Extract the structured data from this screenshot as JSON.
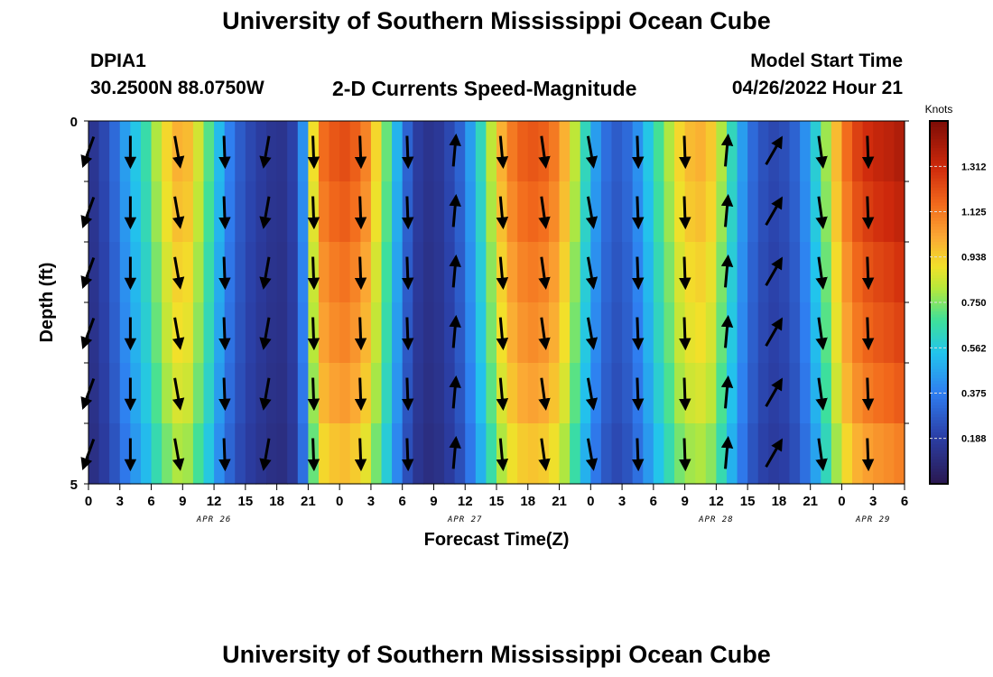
{
  "header": {
    "title": "University of Southern Mississippi Ocean Cube",
    "station_id": "DPIA1",
    "station_coords": "30.2500N  88.0750W",
    "chart_title": "2-D Currents Speed-Magnitude",
    "model_start_label": "Model Start Time",
    "model_start_value": "04/26/2022 Hour 21"
  },
  "footer": {
    "title": "University of Southern Mississippi Ocean Cube"
  },
  "chart_data": {
    "type": "heatmap",
    "title": "2-D Currents Speed-Magnitude",
    "xlabel": "Forecast Time(Z)",
    "ylabel": "Depth (ft)",
    "x_ticks": [
      "0",
      "3",
      "6",
      "9",
      "12",
      "15",
      "18",
      "21",
      "0",
      "3",
      "6",
      "9",
      "12",
      "15",
      "18",
      "21",
      "0",
      "3",
      "6",
      "9",
      "12",
      "15",
      "18",
      "21",
      "0",
      "3",
      "6"
    ],
    "date_labels": [
      {
        "label": "APR 26",
        "tick_index": 4
      },
      {
        "label": "APR 27",
        "tick_index": 12
      },
      {
        "label": "APR 28",
        "tick_index": 20
      },
      {
        "label": "APR 29",
        "tick_index": 25
      }
    ],
    "y_ticks": [
      "0",
      "5"
    ],
    "ylim": [
      0,
      5
    ],
    "hours_range": [
      0,
      78
    ],
    "depth_levels": [
      0,
      1,
      2,
      3,
      4,
      5
    ],
    "colorbar": {
      "unit": "Knots",
      "min": 0,
      "max": 1.5,
      "tick_values": [
        0.188,
        0.375,
        0.562,
        0.75,
        0.938,
        1.125,
        1.312
      ],
      "tick_labels": [
        "0.188",
        "0.375",
        "0.562",
        "0.750",
        "0.938",
        "1.125",
        "1.312"
      ]
    },
    "speed_knots_by_hour": [
      0.15,
      0.22,
      0.32,
      0.45,
      0.55,
      0.65,
      0.8,
      0.92,
      1.0,
      0.98,
      0.85,
      0.7,
      0.52,
      0.38,
      0.28,
      0.22,
      0.18,
      0.15,
      0.14,
      0.2,
      0.42,
      0.9,
      1.15,
      1.2,
      1.22,
      1.18,
      1.1,
      0.92,
      0.72,
      0.5,
      0.3,
      0.18,
      0.14,
      0.16,
      0.22,
      0.3,
      0.45,
      0.62,
      0.82,
      1.0,
      1.12,
      1.18,
      1.2,
      1.18,
      1.12,
      1.0,
      0.82,
      0.62,
      0.45,
      0.33,
      0.28,
      0.32,
      0.42,
      0.55,
      0.68,
      0.8,
      0.92,
      0.98,
      1.0,
      0.95,
      0.8,
      0.62,
      0.45,
      0.32,
      0.25,
      0.22,
      0.24,
      0.3,
      0.42,
      0.58,
      0.78,
      0.98,
      1.15,
      1.25,
      1.3,
      1.33,
      1.35,
      1.38
    ],
    "depth_factor": [
      1.0,
      0.97,
      0.93,
      0.9,
      0.86,
      0.8
    ],
    "arrow_hours": [
      0,
      4,
      8.5,
      13,
      17,
      21.5,
      26,
      30.5,
      35,
      39.5,
      43.5,
      48,
      52.5,
      57,
      61,
      65.5,
      70,
      74.5
    ],
    "arrow_direction_deg": [
      200,
      180,
      170,
      178,
      190,
      178,
      178,
      178,
      5,
      175,
      172,
      170,
      178,
      178,
      5,
      30,
      172,
      178
    ]
  }
}
